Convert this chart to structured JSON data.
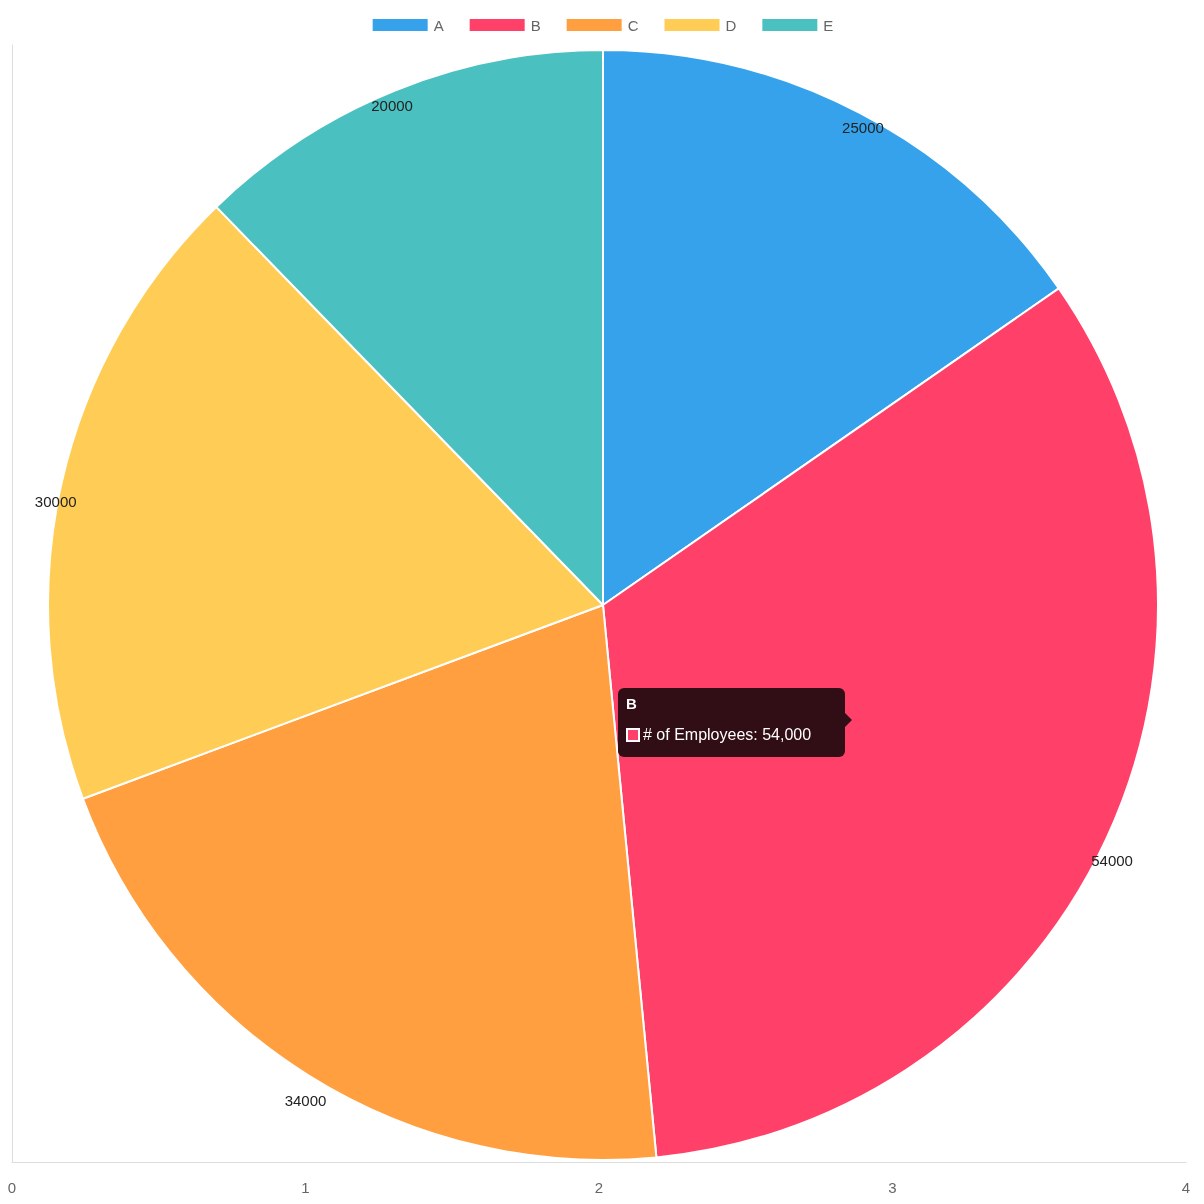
{
  "chart_data": {
    "type": "pie",
    "categories": [
      "A",
      "B",
      "C",
      "D",
      "E"
    ],
    "values": [
      25000,
      54000,
      34000,
      30000,
      20000
    ],
    "colors": [
      "#36a2eb",
      "#ff4069",
      "#ff9f40",
      "#ffcd56",
      "#4bc0c0"
    ],
    "data_labels": true,
    "legend": "top",
    "grid": false,
    "annotations": [
      "B",
      "# of Employees: 54,000",
      "0",
      "1",
      "2",
      "3",
      "4"
    ]
  }
}
